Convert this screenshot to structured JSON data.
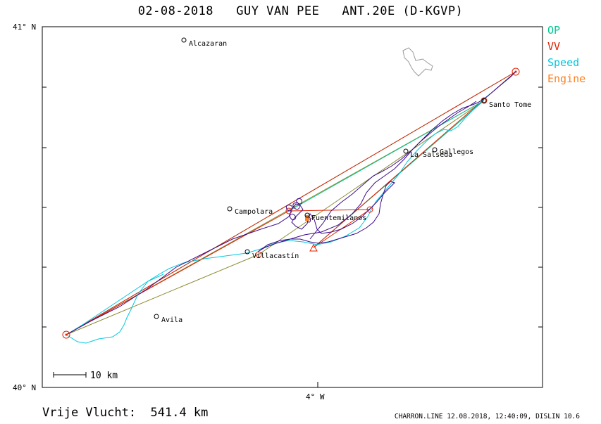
{
  "header": {
    "title": "02-08-2018   GUY VAN PEE   ANT.20E (D-KGVP)"
  },
  "legend": {
    "items": [
      {
        "label": "OP",
        "color": "#00c890"
      },
      {
        "label": "VV",
        "color": "#e02000"
      },
      {
        "label": "Speed",
        "color": "#00c8e0"
      },
      {
        "label": "Engine",
        "color": "#ff8020"
      }
    ]
  },
  "axes": {
    "lat_top": "41° N",
    "lat_bottom": "40° N",
    "lon_tick": "4° W"
  },
  "scale_bar": {
    "label": "10 km"
  },
  "places": [
    {
      "name": "Alcazaran"
    },
    {
      "name": "Santo Tome"
    },
    {
      "name": "La Salseda"
    },
    {
      "name": "Gallegos"
    },
    {
      "name": "Campolara"
    },
    {
      "name": "Fuentemilanos"
    },
    {
      "name": "Villacastín"
    },
    {
      "name": "Avila"
    }
  ],
  "footer": {
    "distance_label": "Vrije Vlucht:  541.4 km",
    "generator": "CHARRON.LINE 12.08.2018, 12:40:09, DISLIN 10.6"
  },
  "colors": {
    "track": "#3a0a8c",
    "op_line": "#00c890",
    "vv_line": "#e02000",
    "speed_line": "#00c8e0",
    "task_line": "#8a8a30"
  }
}
